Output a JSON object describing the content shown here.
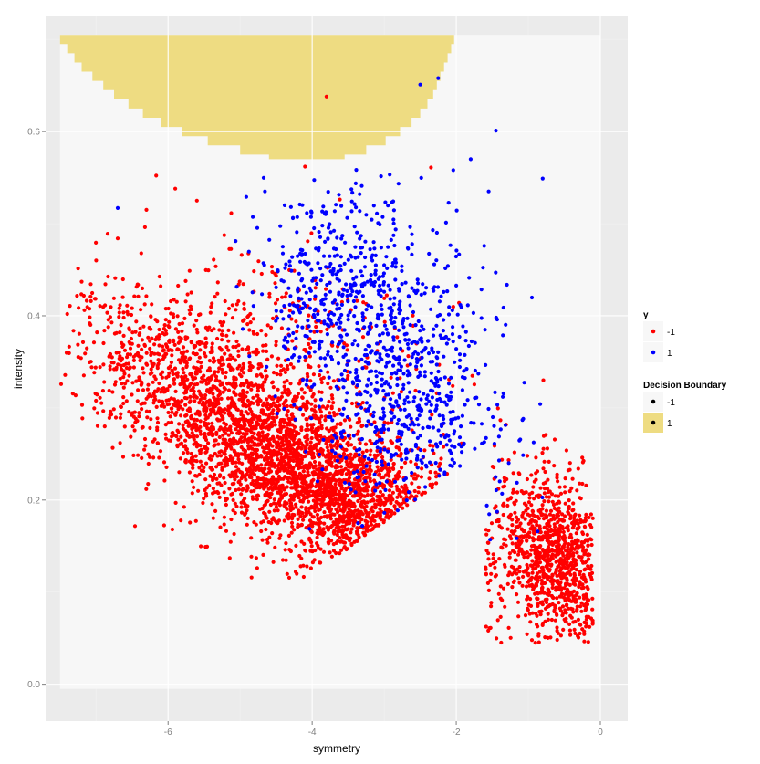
{
  "chart_data": {
    "type": "scatter",
    "xlabel": "symmetry",
    "ylabel": "intensity",
    "xlim": [
      -7.7,
      0.38
    ],
    "ylim": [
      -0.04,
      0.725
    ],
    "x_ticks": [
      {
        "value": -6,
        "label": "-6"
      },
      {
        "value": -4,
        "label": "-4"
      },
      {
        "value": -2,
        "label": "-2"
      },
      {
        "value": 0,
        "label": "0"
      }
    ],
    "y_ticks": [
      {
        "value": 0.0,
        "label": "0.0"
      },
      {
        "value": 0.2,
        "label": "0.2"
      },
      {
        "value": 0.4,
        "label": "0.4"
      },
      {
        "value": 0.6,
        "label": "0.6"
      }
    ],
    "grid": true,
    "panel_background": "#ebebeb",
    "decision_region": {
      "x_range": [
        -7.5,
        0.0
      ],
      "y_range": [
        -0.005,
        0.705
      ],
      "background_label": "-1",
      "background_color": "#f7f7f7",
      "positive_label": "1",
      "positive_color": "#eedc82",
      "positive_region_top": 0.705,
      "positive_region_boundary": [
        {
          "y": 0.7,
          "x_left": -7.5,
          "x_right": -2.03
        },
        {
          "y": 0.69,
          "x_left": -7.4,
          "x_right": -2.07
        },
        {
          "y": 0.68,
          "x_left": -7.3,
          "x_right": -2.12
        },
        {
          "y": 0.67,
          "x_left": -7.2,
          "x_right": -2.17
        },
        {
          "y": 0.66,
          "x_left": -7.05,
          "x_right": -2.22
        },
        {
          "y": 0.65,
          "x_left": -6.9,
          "x_right": -2.27
        },
        {
          "y": 0.64,
          "x_left": -6.75,
          "x_right": -2.32
        },
        {
          "y": 0.63,
          "x_left": -6.55,
          "x_right": -2.4
        },
        {
          "y": 0.62,
          "x_left": -6.35,
          "x_right": -2.5
        },
        {
          "y": 0.61,
          "x_left": -6.1,
          "x_right": -2.62
        },
        {
          "y": 0.6,
          "x_left": -5.8,
          "x_right": -2.78
        },
        {
          "y": 0.59,
          "x_left": -5.45,
          "x_right": -2.98
        },
        {
          "y": 0.58,
          "x_left": -5.0,
          "x_right": -3.25
        },
        {
          "y": 0.575,
          "x_left": -4.6,
          "x_right": -3.55
        }
      ]
    },
    "series": [
      {
        "name": "-1",
        "color": "#ff0000",
        "n": 5600,
        "seed": 12345,
        "distribution": [
          {
            "weight": 0.42,
            "cx": -4.9,
            "cy": 0.27,
            "angle": -0.05,
            "sx": 1.15,
            "sy": 0.05,
            "slope": -0.045
          },
          {
            "weight": 0.22,
            "cx": -3.5,
            "cy": 0.2,
            "angle": 0.0,
            "sx": 0.75,
            "sy": 0.04,
            "slope": -0.04
          },
          {
            "weight": 0.2,
            "cx": -0.6,
            "cy": 0.14,
            "angle": 0.0,
            "sx": 0.42,
            "sy": 0.045,
            "slope": -0.03
          },
          {
            "weight": 0.1,
            "cx": -2.3,
            "cy": 0.15,
            "angle": 0.0,
            "sx": 0.6,
            "sy": 0.04,
            "slope": -0.03
          },
          {
            "weight": 0.06,
            "cx": -4.2,
            "cy": 0.36,
            "angle": 0.0,
            "sx": 1.2,
            "sy": 0.06,
            "slope": -0.02
          }
        ],
        "outliers": [
          {
            "x": -3.8,
            "y": 0.638
          },
          {
            "x": -5.9,
            "y": 0.538
          },
          {
            "x": -5.6,
            "y": 0.525
          },
          {
            "x": -6.3,
            "y": 0.515
          },
          {
            "x": -7.4,
            "y": 0.402
          },
          {
            "x": -7.2,
            "y": 0.437
          },
          {
            "x": -6.7,
            "y": 0.484
          },
          {
            "x": -4.1,
            "y": 0.562
          },
          {
            "x": -2.35,
            "y": 0.561
          },
          {
            "x": -0.95,
            "y": 0.048
          },
          {
            "x": -0.6,
            "y": 0.058
          },
          {
            "x": -0.35,
            "y": 0.068
          }
        ]
      },
      {
        "name": "1",
        "color": "#0000ff",
        "n": 1100,
        "seed": 6789,
        "distribution": [
          {
            "weight": 0.45,
            "cx": -2.9,
            "cy": 0.36,
            "angle": 0.0,
            "sx": 0.75,
            "sy": 0.075,
            "slope": 0.0
          },
          {
            "weight": 0.3,
            "cx": -3.6,
            "cy": 0.44,
            "angle": 0.0,
            "sx": 0.6,
            "sy": 0.06,
            "slope": 0.0
          },
          {
            "weight": 0.25,
            "cx": -2.4,
            "cy": 0.28,
            "angle": 0.0,
            "sx": 0.6,
            "sy": 0.05,
            "slope": -0.02
          }
        ],
        "outliers": [
          {
            "x": -2.25,
            "y": 0.658
          },
          {
            "x": -2.5,
            "y": 0.651
          },
          {
            "x": -1.45,
            "y": 0.601
          },
          {
            "x": -0.8,
            "y": 0.549
          },
          {
            "x": -6.7,
            "y": 0.517
          },
          {
            "x": -1.55,
            "y": 0.535
          },
          {
            "x": -1.8,
            "y": 0.57
          }
        ]
      }
    ],
    "legends": [
      {
        "title": "y",
        "position": "right",
        "entries": [
          {
            "label": "-1",
            "color": "#ff0000",
            "key_fill": "#f7f7f7"
          },
          {
            "label": "1",
            "color": "#0000ff",
            "key_fill": "#f7f7f7"
          }
        ]
      },
      {
        "title": "Decision Boundary",
        "position": "right",
        "entries": [
          {
            "label": "-1",
            "color": "#000000",
            "key_fill": "#f7f7f7"
          },
          {
            "label": "1",
            "color": "#000000",
            "key_fill": "#eedc82"
          }
        ]
      }
    ]
  }
}
